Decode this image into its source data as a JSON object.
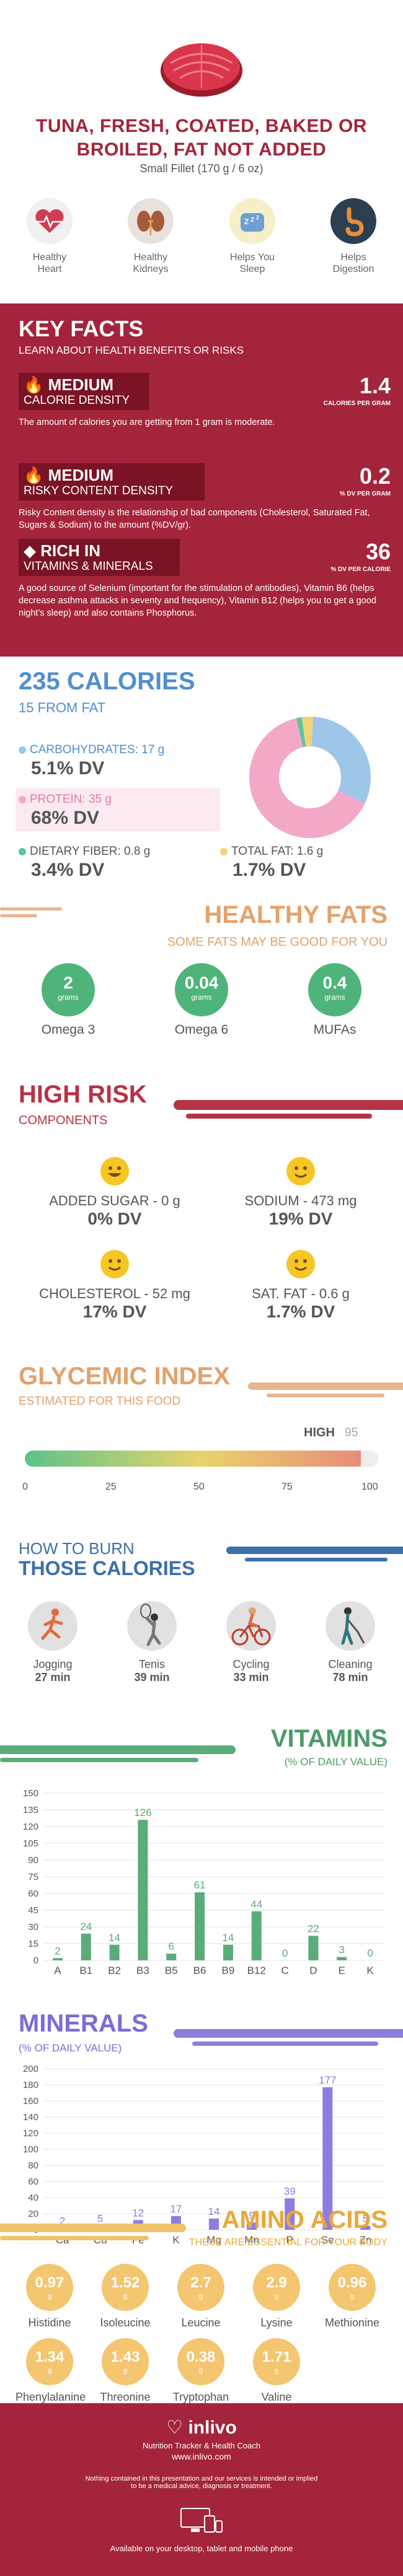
{
  "header": {
    "title_line1": "TUNA, FRESH, COATED, BAKED OR",
    "title_line2": "BROILED, FAT NOT ADDED",
    "serving": "Small Fillet (170 g / 6 oz)",
    "benefits": [
      {
        "label1": "Healthy",
        "label2": "Heart",
        "icon": "heart-icon",
        "color": "#cf3c53"
      },
      {
        "label1": "Healthy",
        "label2": "Kidneys",
        "icon": "kidneys-icon",
        "color": "#a55a3c"
      },
      {
        "label1": "Helps You",
        "label2": "Sleep",
        "icon": "sleep-icon",
        "color": "#6fa0d4"
      },
      {
        "label1": "Helps",
        "label2": "Digestion",
        "icon": "digestion-icon",
        "color": "#2c3e50"
      }
    ]
  },
  "key_facts": {
    "title": "KEY FACTS",
    "subtitle": "LEARN ABOUT HEALTH BENEFITS OR RISKS",
    "facts": [
      {
        "level": "MEDIUM",
        "category": "CALORIE DENSITY",
        "value": "1.4",
        "unit": "CALORIES PER GRAM",
        "desc": "The amount of calories you are getting from 1 gram is moderate."
      },
      {
        "level": "MEDIUM",
        "category": "RISKY CONTENT DENSITY",
        "value": "0.2",
        "unit": "% DV PER GRAM",
        "desc": "Risky Content density is the relationship of bad components (Cholesterol, Saturated Fat, Sugars & Sodium) to the amount (%DV/gr)."
      },
      {
        "level": "RICH  IN",
        "category": "VITAMINS & MINERALS",
        "value": "36",
        "unit": "% DV PER CALORIE",
        "desc": "A good source of Selenium (important for the stimulation of antibodies), Vitamin B6 (helps decrease asthma attacks in seventy and frequency), Vitamin B12 (helps you to get a good night's sleep) and also contains Phosphorus."
      }
    ]
  },
  "calories": {
    "title": "235 CALORIES",
    "from_fat": "15 FROM FAT",
    "carbs_label": "CARBOHYDRATES: 17 g",
    "carbs_dv": "5.1% DV",
    "protein_label": "PROTEIN: 35 g",
    "protein_dv": "68% DV",
    "fiber_label": "DIETARY FIBER: 0.8 g",
    "fiber_dv": "3.4% DV",
    "fat_label": "TOTAL FAT: 1.6 g",
    "fat_dv": "1.7% DV",
    "colors": {
      "carbs": "#9ec6e8",
      "protein": "#f4a8c8",
      "fiber": "#5bc4a1",
      "fat": "#f3d37a"
    }
  },
  "fats": {
    "title": "HEALTHY FATS",
    "subtitle": "SOME FATS MAY BE GOOD FOR YOU",
    "items": [
      {
        "value": "2",
        "unit": "grams",
        "label": "Omega 3"
      },
      {
        "value": "0.04",
        "unit": "grams",
        "label": "Omega 6"
      },
      {
        "value": "0.4",
        "unit": "grams",
        "label": "MUFAs"
      }
    ]
  },
  "risk": {
    "title": "HIGH RISK",
    "subtitle": "COMPONENTS",
    "items": [
      {
        "label": "ADDED SUGAR - 0 g",
        "value": "0% DV"
      },
      {
        "label": "SODIUM - 473 mg",
        "value": "19% DV"
      },
      {
        "label": "CHOLESTEROL - 52 mg",
        "value": "17% DV"
      },
      {
        "label": "SAT. FAT - 0.6 g",
        "value": "1.7% DV"
      }
    ]
  },
  "glycemic": {
    "title": "GLYCEMIC INDEX",
    "subtitle": "ESTIMATED FOR THIS FOOD",
    "level": "HIGH",
    "value": 95,
    "value_text": "95",
    "ticks": [
      "0",
      "25",
      "50",
      "75",
      "100"
    ]
  },
  "burn": {
    "title1": "HOW TO BURN",
    "title2": "THOSE CALORIES",
    "items": [
      {
        "activity": "Jogging",
        "time": "27 min",
        "icon": "jogging-icon"
      },
      {
        "activity": "Tenis",
        "time": "39 min",
        "icon": "tennis-icon"
      },
      {
        "activity": "Cycling",
        "time": "33 min",
        "icon": "cycling-icon"
      },
      {
        "activity": "Cleaning",
        "time": "78 min",
        "icon": "cleaning-icon"
      }
    ]
  },
  "chart_data": [
    {
      "type": "bar",
      "title": "VITAMINS",
      "subtitle": "(% OF DAILY VALUE)",
      "categories": [
        "A",
        "B1",
        "B2",
        "B3",
        "B5",
        "B6",
        "B9",
        "B12",
        "C",
        "D",
        "E",
        "K"
      ],
      "values": [
        2,
        24,
        14,
        126,
        6,
        61,
        14,
        44,
        0,
        22,
        3,
        0
      ],
      "yticks": [
        "0",
        "15",
        "30",
        "45",
        "60",
        "75",
        "90",
        "105",
        "120",
        "135",
        "150"
      ],
      "ylim": [
        0,
        150
      ],
      "color": "#5aac7a"
    },
    {
      "type": "bar",
      "title": "MINERALS",
      "subtitle": "(% OF DAILY VALUE)",
      "categories": [
        "Ca",
        "Cu",
        "Fe",
        "K",
        "Mg",
        "Mn",
        "P",
        "Se",
        "Zn"
      ],
      "values": [
        2,
        5,
        12,
        17,
        14,
        9,
        39,
        177,
        5
      ],
      "yticks": [
        "0",
        "20",
        "40",
        "60",
        "80",
        "100",
        "120",
        "140",
        "160",
        "180",
        "200"
      ],
      "ylim": [
        0,
        200
      ],
      "color": "#8e7ce0"
    }
  ],
  "amino": {
    "title": "AMINO ACIDS",
    "subtitle": "THESE ARE ESSENTIAL FOR YOUR BODY",
    "unit": "g",
    "items": [
      {
        "value": "0.97",
        "label": "Histidine"
      },
      {
        "value": "1.52",
        "label": "Isoleucine"
      },
      {
        "value": "2.7",
        "label": "Leucine"
      },
      {
        "value": "2.9",
        "label": "Lysine"
      },
      {
        "value": "0.96",
        "label": "Methionine"
      },
      {
        "value": "1.34",
        "label": "Phenylalanine"
      },
      {
        "value": "1.43",
        "label": "Threonine"
      },
      {
        "value": "0.38",
        "label": "Tryptophan"
      },
      {
        "value": "1.71",
        "label": "Valine"
      }
    ]
  },
  "footer": {
    "brand": "inlivo",
    "tagline": "Nutrition Tracker & Health Coach",
    "url": "www.inlivo.com",
    "disclaimer1": "Nothing contained in this presentation and our services is intended or implied",
    "disclaimer2": "to be a medical advice, diagnosis or treatment.",
    "available": "Available on your desktop, tablet and mobile phone"
  }
}
